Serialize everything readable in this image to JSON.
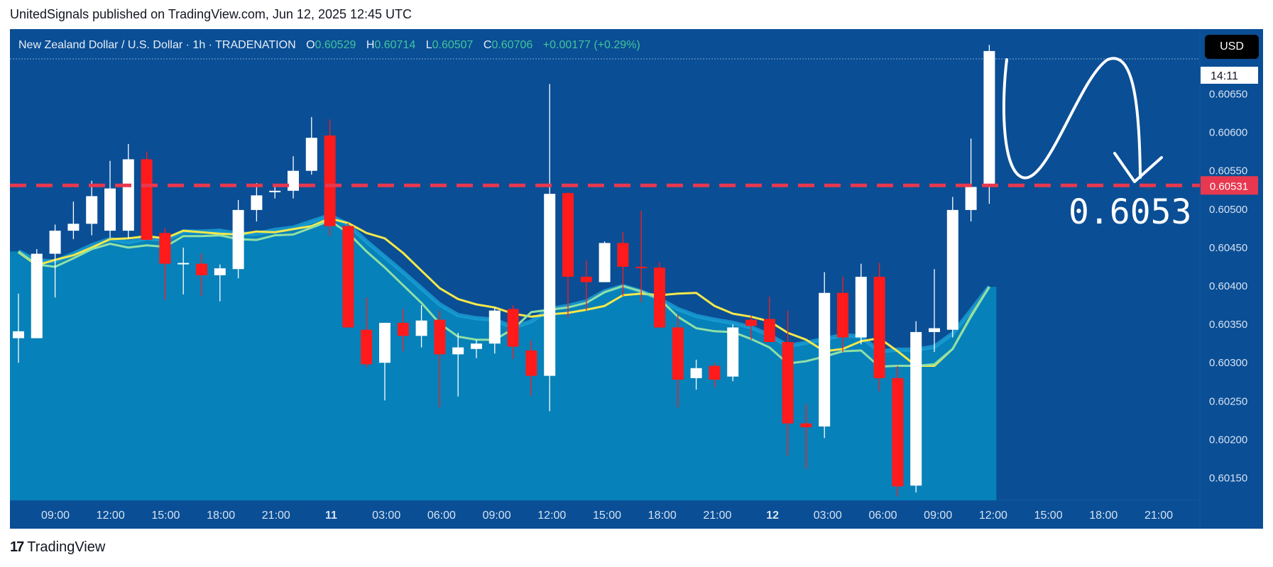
{
  "header": {
    "published": "UnitedSignals published on TradingView.com, Jun 12, 2025 12:45 UTC"
  },
  "legend": {
    "symbol": "New Zealand Dollar / U.S. Dollar · 1h · TRADENATION",
    "o_label": "O",
    "o": "0.60529",
    "h_label": "H",
    "h": "0.60714",
    "l_label": "L",
    "l": "0.60507",
    "c_label": "C",
    "c": "0.60706",
    "change": "+0.00177 (+0.29%)"
  },
  "currency_button": "USD",
  "price_badge": "0.60531",
  "countdown_badge": "14:11",
  "annotation_text": "0.6053",
  "footer": {
    "brand": "TradingView",
    "logo": "17"
  },
  "colors": {
    "background": "#0a4e95",
    "bull": "#ffffff",
    "bear": "#ff1b1b",
    "ma_yellow": "#f5e84a",
    "ma_green": "#8fe0a6",
    "area": "#0784ba",
    "level_line": "#e8384f"
  },
  "chart_data": {
    "type": "candlestick",
    "title": "New Zealand Dollar / U.S. Dollar · 1h · TRADENATION",
    "ylim": [
      0.6011,
      0.6074
    ],
    "y_ticks": [
      "0.60650",
      "0.60600",
      "0.60550",
      "0.60500",
      "0.60450",
      "0.60400",
      "0.60350",
      "0.60300",
      "0.60250",
      "0.60200",
      "0.60150"
    ],
    "x_tick_labels": [
      "09:00",
      "12:00",
      "15:00",
      "18:00",
      "21:00",
      "11",
      "03:00",
      "06:00",
      "09:00",
      "12:00",
      "15:00",
      "18:00",
      "21:00",
      "12",
      "03:00",
      "06:00",
      "09:00",
      "12:00",
      "15:00",
      "18:00",
      "21:00"
    ],
    "x_tick_bold": [
      "11",
      "12"
    ],
    "horizontal_level": 0.60531,
    "candles": [
      {
        "o": 0.60332,
        "h": 0.6039,
        "l": 0.603,
        "c": 0.60341
      },
      {
        "o": 0.60332,
        "h": 0.60448,
        "l": 0.60332,
        "c": 0.60442
      },
      {
        "o": 0.60442,
        "h": 0.6048,
        "l": 0.60385,
        "c": 0.60472
      },
      {
        "o": 0.60472,
        "h": 0.6051,
        "l": 0.60461,
        "c": 0.60481
      },
      {
        "o": 0.60481,
        "h": 0.60537,
        "l": 0.60466,
        "c": 0.60517
      },
      {
        "o": 0.60472,
        "h": 0.60563,
        "l": 0.60463,
        "c": 0.60527
      },
      {
        "o": 0.60472,
        "h": 0.60585,
        "l": 0.60461,
        "c": 0.60565
      },
      {
        "o": 0.60565,
        "h": 0.60575,
        "l": 0.6046,
        "c": 0.6046
      },
      {
        "o": 0.60469,
        "h": 0.60475,
        "l": 0.60382,
        "c": 0.60429
      },
      {
        "o": 0.60429,
        "h": 0.6045,
        "l": 0.60389,
        "c": 0.6043
      },
      {
        "o": 0.60429,
        "h": 0.60442,
        "l": 0.60387,
        "c": 0.60414
      },
      {
        "o": 0.60414,
        "h": 0.60428,
        "l": 0.6038,
        "c": 0.60423
      },
      {
        "o": 0.60422,
        "h": 0.60512,
        "l": 0.6041,
        "c": 0.60499
      },
      {
        "o": 0.60499,
        "h": 0.60534,
        "l": 0.60484,
        "c": 0.60518
      },
      {
        "o": 0.60524,
        "h": 0.60533,
        "l": 0.60514,
        "c": 0.60524
      },
      {
        "o": 0.60524,
        "h": 0.60569,
        "l": 0.60514,
        "c": 0.6055
      },
      {
        "o": 0.6055,
        "h": 0.6062,
        "l": 0.60545,
        "c": 0.60593
      },
      {
        "o": 0.60596,
        "h": 0.60617,
        "l": 0.60465,
        "c": 0.60478
      },
      {
        "o": 0.60478,
        "h": 0.60482,
        "l": 0.60346,
        "c": 0.60346
      },
      {
        "o": 0.60343,
        "h": 0.60385,
        "l": 0.60294,
        "c": 0.60298
      },
      {
        "o": 0.603,
        "h": 0.60352,
        "l": 0.60251,
        "c": 0.60352
      },
      {
        "o": 0.60352,
        "h": 0.6037,
        "l": 0.60315,
        "c": 0.60335
      },
      {
        "o": 0.60335,
        "h": 0.60375,
        "l": 0.6032,
        "c": 0.60355
      },
      {
        "o": 0.60356,
        "h": 0.60368,
        "l": 0.60242,
        "c": 0.60311
      },
      {
        "o": 0.60311,
        "h": 0.60339,
        "l": 0.60256,
        "c": 0.6032
      },
      {
        "o": 0.60318,
        "h": 0.6033,
        "l": 0.60306,
        "c": 0.60325
      },
      {
        "o": 0.60325,
        "h": 0.60372,
        "l": 0.60312,
        "c": 0.60368
      },
      {
        "o": 0.6037,
        "h": 0.60375,
        "l": 0.60305,
        "c": 0.60321
      },
      {
        "o": 0.60316,
        "h": 0.60329,
        "l": 0.60257,
        "c": 0.60283
      },
      {
        "o": 0.60283,
        "h": 0.60663,
        "l": 0.60237,
        "c": 0.6052
      },
      {
        "o": 0.60521,
        "h": 0.60522,
        "l": 0.60359,
        "c": 0.60412
      },
      {
        "o": 0.60412,
        "h": 0.60433,
        "l": 0.60368,
        "c": 0.60405
      },
      {
        "o": 0.60405,
        "h": 0.60458,
        "l": 0.60405,
        "c": 0.60456
      },
      {
        "o": 0.60456,
        "h": 0.6047,
        "l": 0.60387,
        "c": 0.60425
      },
      {
        "o": 0.60425,
        "h": 0.60498,
        "l": 0.60379,
        "c": 0.60424
      },
      {
        "o": 0.60424,
        "h": 0.60431,
        "l": 0.60345,
        "c": 0.60346
      },
      {
        "o": 0.60346,
        "h": 0.60363,
        "l": 0.60242,
        "c": 0.60278
      },
      {
        "o": 0.6028,
        "h": 0.60304,
        "l": 0.60265,
        "c": 0.60293
      },
      {
        "o": 0.60296,
        "h": 0.603,
        "l": 0.60268,
        "c": 0.60278
      },
      {
        "o": 0.60282,
        "h": 0.6035,
        "l": 0.60276,
        "c": 0.60346
      },
      {
        "o": 0.60356,
        "h": 0.60361,
        "l": 0.6033,
        "c": 0.60348
      },
      {
        "o": 0.60357,
        "h": 0.60386,
        "l": 0.60327,
        "c": 0.60327
      },
      {
        "o": 0.60327,
        "h": 0.60368,
        "l": 0.60179,
        "c": 0.60221
      },
      {
        "o": 0.60221,
        "h": 0.60246,
        "l": 0.60162,
        "c": 0.60216
      },
      {
        "o": 0.60217,
        "h": 0.60418,
        "l": 0.60202,
        "c": 0.60391
      },
      {
        "o": 0.60391,
        "h": 0.60412,
        "l": 0.60314,
        "c": 0.60333
      },
      {
        "o": 0.60333,
        "h": 0.60429,
        "l": 0.60324,
        "c": 0.60412
      },
      {
        "o": 0.60412,
        "h": 0.6043,
        "l": 0.60263,
        "c": 0.6028
      },
      {
        "o": 0.6028,
        "h": 0.60296,
        "l": 0.60126,
        "c": 0.60139
      },
      {
        "o": 0.6014,
        "h": 0.60354,
        "l": 0.60131,
        "c": 0.6034
      },
      {
        "o": 0.6034,
        "h": 0.60422,
        "l": 0.60314,
        "c": 0.60345
      },
      {
        "o": 0.60343,
        "h": 0.60516,
        "l": 0.60333,
        "c": 0.60499
      },
      {
        "o": 0.60499,
        "h": 0.60592,
        "l": 0.60484,
        "c": 0.60529
      },
      {
        "o": 0.60529,
        "h": 0.60714,
        "l": 0.60507,
        "c": 0.60706
      }
    ],
    "ma_yellow": [
      0.60444,
      0.60427,
      0.60434,
      0.6044,
      0.6045,
      0.60461,
      0.60462,
      0.60465,
      0.60462,
      0.60472,
      0.6047,
      0.60468,
      0.60467,
      0.60471,
      0.6047,
      0.60474,
      0.60478,
      0.60488,
      0.60482,
      0.60469,
      0.60462,
      0.60443,
      0.6042,
      0.60397,
      0.60383,
      0.60376,
      0.60372,
      0.60364,
      0.6036,
      0.60363,
      0.60365,
      0.60369,
      0.60374,
      0.60388,
      0.6039,
      0.60388,
      0.6039,
      0.60391,
      0.60374,
      0.60364,
      0.6036,
      0.60354,
      0.60339,
      0.6033,
      0.60315,
      0.60318,
      0.60328,
      0.60332,
      0.60315,
      0.60296,
      0.60296,
      0.60318,
      0.60361,
      0.60399
    ],
    "ma_green": [
      0.60445,
      0.60428,
      0.60425,
      0.60436,
      0.60448,
      0.60455,
      0.6045,
      0.60453,
      0.60451,
      0.60465,
      0.60465,
      0.60466,
      0.60461,
      0.6046,
      0.60466,
      0.60467,
      0.60476,
      0.60485,
      0.60469,
      0.60445,
      0.60424,
      0.60401,
      0.60378,
      0.60351,
      0.60334,
      0.6033,
      0.6033,
      0.60344,
      0.60366,
      0.60369,
      0.60372,
      0.60378,
      0.60392,
      0.604,
      0.60393,
      0.60383,
      0.6036,
      0.60345,
      0.60341,
      0.6034,
      0.60331,
      0.6032,
      0.60299,
      0.60302,
      0.60308,
      0.60315,
      0.60316,
      0.60295,
      0.60296,
      0.60296,
      0.60298,
      0.60318,
      0.6036,
      0.60399
    ],
    "area_top": [
      0.60445,
      0.60433,
      0.60432,
      0.60442,
      0.60453,
      0.60461,
      0.60457,
      0.60462,
      0.6046,
      0.60471,
      0.60471,
      0.60472,
      0.60468,
      0.60468,
      0.60473,
      0.60476,
      0.60484,
      0.60492,
      0.6048,
      0.60458,
      0.60438,
      0.60418,
      0.60397,
      0.60376,
      0.60362,
      0.60358,
      0.60356,
      0.60346,
      0.60354,
      0.6037,
      0.60374,
      0.6038,
      0.60393,
      0.604,
      0.60393,
      0.60383,
      0.6037,
      0.60361,
      0.60356,
      0.60352,
      0.60346,
      0.60336,
      0.60322,
      0.60326,
      0.60331,
      0.60336,
      0.60334,
      0.60315,
      0.60317,
      0.60317,
      0.60321,
      0.60338,
      0.60368,
      0.60399
    ]
  }
}
